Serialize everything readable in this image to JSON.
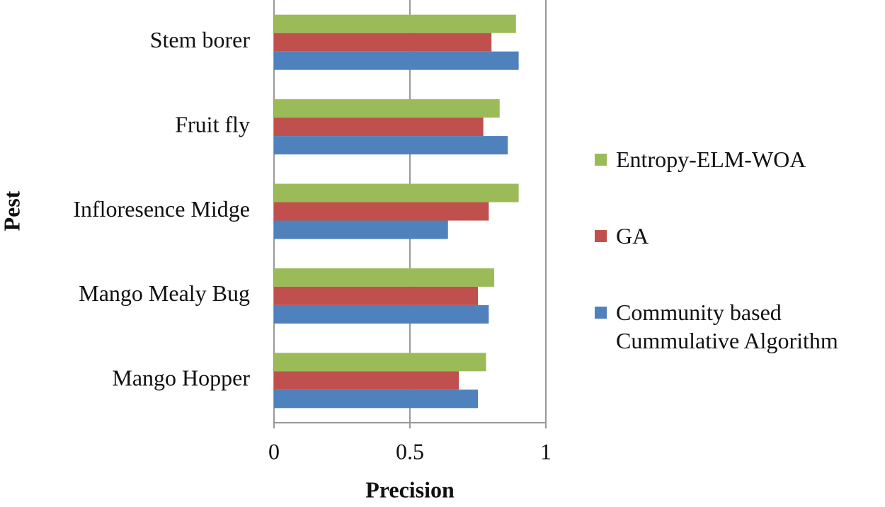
{
  "chart_data": {
    "type": "bar",
    "orientation": "horizontal",
    "x_label": "Precision",
    "y_label": "Pest",
    "categories": [
      "Stem borer",
      "Fruit fly",
      "Infloresence Midge",
      "Mango Mealy Bug",
      "Mango Hopper"
    ],
    "series": [
      {
        "name": "Entropy-ELM-WOA",
        "color": "#9bbb59",
        "values": [
          0.89,
          0.83,
          0.9,
          0.81,
          0.78
        ]
      },
      {
        "name": "GA",
        "color": "#c0504d",
        "values": [
          0.8,
          0.77,
          0.79,
          0.75,
          0.68
        ]
      },
      {
        "name": "Community based Cummulative Algorithm",
        "color": "#4f81bd",
        "values": [
          0.9,
          0.86,
          0.64,
          0.79,
          0.75
        ]
      }
    ],
    "xlim": [
      0,
      1
    ],
    "xticks": [
      0,
      0.5,
      1
    ],
    "grid": true,
    "legend": "right"
  }
}
